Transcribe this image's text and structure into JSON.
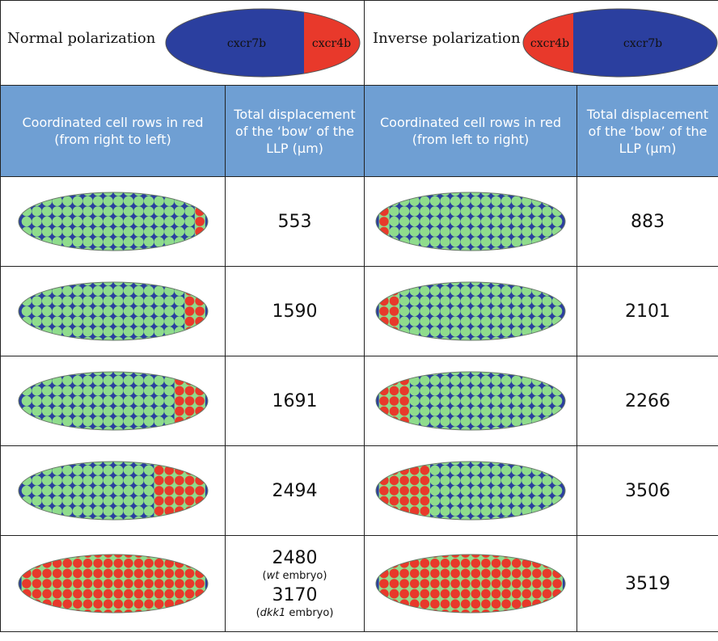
{
  "top": {
    "normal": {
      "label": "Normal polarization",
      "left_gene": "cxcr7b",
      "right_gene": "cxcr4b"
    },
    "inverse": {
      "label": "Inverse polarization",
      "left_gene": "cxcr4b",
      "right_gene": "cxcr7b"
    }
  },
  "headers": {
    "normal_rows": "Coordinated cell rows in red (from right to left)",
    "normal_disp": "Total displacement of the ‘bow’ of the LLP (μm)",
    "inverse_rows": "Coordinated cell rows in red (from left to right)",
    "inverse_disp": "Total displacement of the ‘bow’ of the LLP (μm)"
  },
  "rows": [
    {
      "red_rows": 1,
      "normal_value": "553",
      "inverse_value": "883"
    },
    {
      "red_rows": 2,
      "normal_value": "1590",
      "inverse_value": "2101"
    },
    {
      "red_rows": 3,
      "normal_value": "1691",
      "inverse_value": "2266"
    },
    {
      "red_rows": 5,
      "normal_value": "2494",
      "inverse_value": "3506"
    },
    {
      "red_rows": "all",
      "normal_value": "2480",
      "normal_note": "embryo",
      "normal_note_italic": "wt",
      "normal_value2": "3170",
      "normal_note2": "embryo",
      "normal_note2_italic": "dkk1",
      "inverse_value": "3519"
    }
  ],
  "colors": {
    "blue": "#2b3f9f",
    "red": "#e8392b",
    "green": "#8fdc8c",
    "header_bg": "#6f9fd3"
  }
}
